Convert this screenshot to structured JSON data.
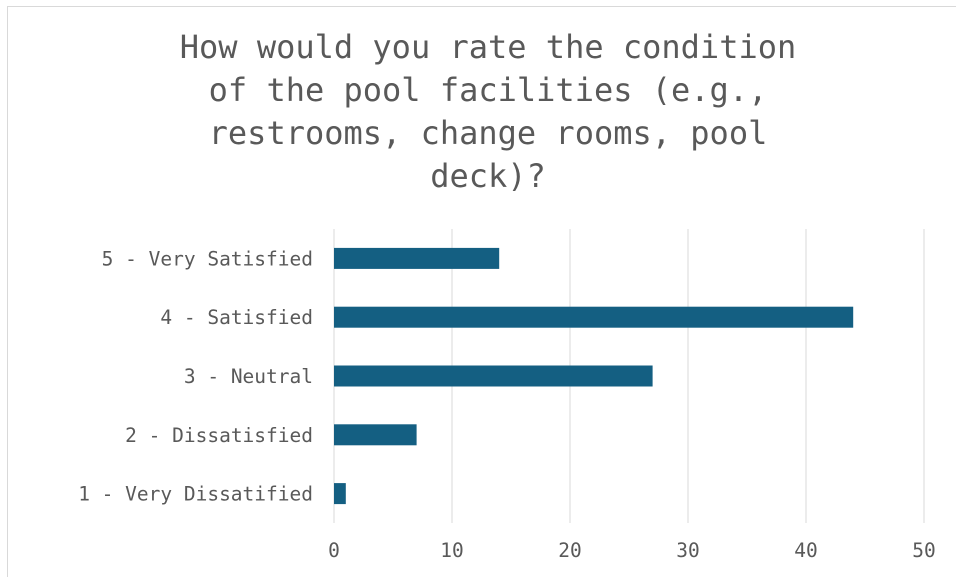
{
  "chart_data": {
    "type": "bar",
    "orientation": "horizontal",
    "title_lines": [
      "How would you rate the condition",
      "of the pool facilities (e.g.,",
      "restrooms, change rooms, pool",
      "deck)?"
    ],
    "categories": [
      "5 - Very Satisfied",
      "4 - Satisfied",
      "3 - Neutral",
      "2 - Dissatisfied",
      "1 - Very Dissatified"
    ],
    "values": [
      14,
      44,
      27,
      7,
      1
    ],
    "xlim": [
      0,
      50
    ],
    "xticks": [
      "0",
      "10",
      "20",
      "30",
      "40",
      "50"
    ],
    "grid": "vertical",
    "legend": "none",
    "bar_color": "#145f82",
    "grid_color": "#d9d9d9",
    "text_color": "#595959"
  }
}
